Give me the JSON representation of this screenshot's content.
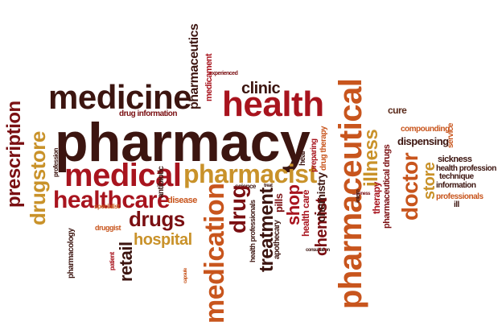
{
  "colors": {
    "dark": "#3c1510",
    "red": "#a8141e",
    "darkred": "#7a0f12",
    "orange": "#c8551d",
    "gold": "#c9922a",
    "brown": "#5a2a1a"
  },
  "words": [
    {
      "id": "pharmacy",
      "text": "pharmacy"
    },
    {
      "id": "medicine",
      "text": "medicine"
    },
    {
      "id": "health",
      "text": "health"
    },
    {
      "id": "clinic",
      "text": "clinic"
    },
    {
      "id": "medical",
      "text": "medical"
    },
    {
      "id": "pharmacist",
      "text": "pharmacist"
    },
    {
      "id": "healthcare",
      "text": "healthcare"
    },
    {
      "id": "drugs",
      "text": "drugs"
    },
    {
      "id": "hospital",
      "text": "hospital"
    },
    {
      "id": "prescription",
      "text": "prescription"
    },
    {
      "id": "drugstore",
      "text": "drugstore"
    },
    {
      "id": "pharmaceutics",
      "text": "pharmaceutics"
    },
    {
      "id": "medicament",
      "text": "medicament"
    },
    {
      "id": "experienced",
      "text": "experienced"
    },
    {
      "id": "drug-information",
      "text": "drug information"
    },
    {
      "id": "pharmaceutical",
      "text": "pharmaceutical"
    },
    {
      "id": "illness",
      "text": "illness"
    },
    {
      "id": "therapy",
      "text": "therapy"
    },
    {
      "id": "pharmaceutical-drugs",
      "text": "pharmaceutical drugs"
    },
    {
      "id": "doctor",
      "text": "doctor"
    },
    {
      "id": "store",
      "text": "store"
    },
    {
      "id": "cure",
      "text": "cure"
    },
    {
      "id": "compounding",
      "text": "compounding"
    },
    {
      "id": "dispensing",
      "text": "dispensing"
    },
    {
      "id": "service",
      "text": "service"
    },
    {
      "id": "sickness",
      "text": "sickness"
    },
    {
      "id": "health-profession",
      "text": "health profession"
    },
    {
      "id": "technique",
      "text": "technique"
    },
    {
      "id": "information",
      "text": "information"
    },
    {
      "id": "professionals",
      "text": "professionals"
    },
    {
      "id": "ill",
      "text": "ill"
    },
    {
      "id": "medication",
      "text": "medication"
    },
    {
      "id": "drug",
      "text": "drug"
    },
    {
      "id": "treatment",
      "text": "treatment"
    },
    {
      "id": "shop",
      "text": "shop"
    },
    {
      "id": "chemist",
      "text": "chemist"
    },
    {
      "id": "chemistry",
      "text": "chemistry"
    },
    {
      "id": "health-care",
      "text": "health care"
    },
    {
      "id": "drug-therapy",
      "text": "drug therapy"
    },
    {
      "id": "preparing",
      "text": "preparing"
    },
    {
      "id": "heal",
      "text": "heal"
    },
    {
      "id": "pills",
      "text": "pills"
    },
    {
      "id": "apothecary",
      "text": "apothecary"
    },
    {
      "id": "health-professionals",
      "text": "health professionals"
    },
    {
      "id": "science",
      "text": "science"
    },
    {
      "id": "treat",
      "text": "treat"
    },
    {
      "id": "druggist",
      "text": "druggist"
    },
    {
      "id": "specialist",
      "text": "specialist"
    },
    {
      "id": "retail",
      "text": "retail"
    },
    {
      "id": "pharmacology",
      "text": "pharmacology"
    },
    {
      "id": "disease",
      "text": "disease"
    },
    {
      "id": "patient",
      "text": "patient"
    },
    {
      "id": "antibiotic",
      "text": "antibiotic"
    },
    {
      "id": "profession",
      "text": "profession"
    },
    {
      "id": "market",
      "text": "market"
    },
    {
      "id": "consultation",
      "text": "consultation"
    },
    {
      "id": "capsule",
      "text": "capsule"
    },
    {
      "id": "business",
      "text": "business"
    },
    {
      "id": "intern",
      "text": "intern"
    }
  ]
}
